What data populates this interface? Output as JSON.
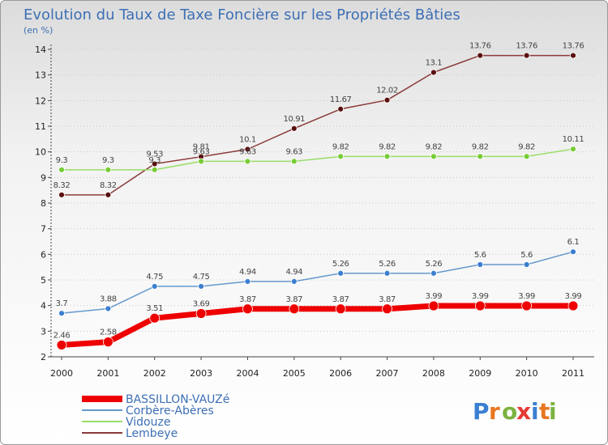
{
  "chart_data": {
    "type": "line",
    "title": "Evolution du Taux de Taxe Foncière sur les Propriétés Bâties",
    "subtitle": "(en %)",
    "categories": [
      "2000",
      "2001",
      "2002",
      "2003",
      "2004",
      "2005",
      "2006",
      "2007",
      "2008",
      "2009",
      "2010",
      "2011"
    ],
    "ylim": [
      2,
      14
    ],
    "yticks": [
      "2",
      "3",
      "4",
      "5",
      "6",
      "7",
      "8",
      "9",
      "10",
      "11",
      "12",
      "13",
      "14"
    ],
    "series": [
      {
        "name": "BASSILLON-VAUZé",
        "color": "#ee0000",
        "marker": "#ee0000",
        "width": 7,
        "radius": 6,
        "values": [
          2.46,
          2.58,
          3.51,
          3.69,
          3.87,
          3.87,
          3.87,
          3.87,
          3.99,
          3.99,
          3.99,
          3.99
        ],
        "labels": [
          "2.46",
          "2.58",
          "3.51",
          "3.69",
          "3.87",
          "3.87",
          "3.87",
          "3.87",
          "3.99",
          "3.99",
          "3.99",
          "3.99"
        ]
      },
      {
        "name": "Corbère-Abères",
        "color": "#6699cc",
        "marker": "#3a7fd0",
        "width": 1.5,
        "radius": 3.5,
        "values": [
          3.7,
          3.88,
          4.75,
          4.75,
          4.94,
          4.94,
          5.26,
          5.26,
          5.26,
          5.6,
          5.6,
          6.1
        ],
        "labels": [
          "3.7",
          "3.88",
          "4.75",
          "4.75",
          "4.94",
          "4.94",
          "5.26",
          "5.26",
          "5.26",
          "5.6",
          "5.6",
          "6.1"
        ]
      },
      {
        "name": "Vidouze",
        "color": "#99dd66",
        "marker": "#77cc33",
        "width": 1.5,
        "radius": 3.5,
        "values": [
          9.3,
          9.3,
          9.3,
          9.63,
          9.63,
          9.63,
          9.82,
          9.82,
          9.82,
          9.82,
          9.82,
          10.11
        ],
        "labels": [
          "9.3",
          "9.3",
          "9.3",
          "9.63",
          "9.63",
          "9.63",
          "9.82",
          "9.82",
          "9.82",
          "9.82",
          "9.82",
          "10.11"
        ]
      },
      {
        "name": "Lembeye",
        "color": "#8b3a3a",
        "marker": "#5a1010",
        "width": 1.5,
        "radius": 3.5,
        "values": [
          8.32,
          8.32,
          9.53,
          9.81,
          10.1,
          10.91,
          11.67,
          12.02,
          13.1,
          13.76,
          13.76,
          13.76
        ],
        "labels": [
          "8.32",
          "8.32",
          "9.53",
          "9.81",
          "10.1",
          "10.91",
          "11.67",
          "12.02",
          "13.1",
          "13.76",
          "13.76",
          "13.76"
        ]
      }
    ],
    "legend_placement": "bottom-left"
  },
  "logo": {
    "letters": [
      "P",
      "r",
      "o",
      "x",
      "i",
      "t",
      "i"
    ],
    "colors": [
      "#3a7fd0",
      "#e87722",
      "#7cb342",
      "#e53935",
      "#3a7fd0",
      "#e87722",
      "#7cb342"
    ]
  }
}
